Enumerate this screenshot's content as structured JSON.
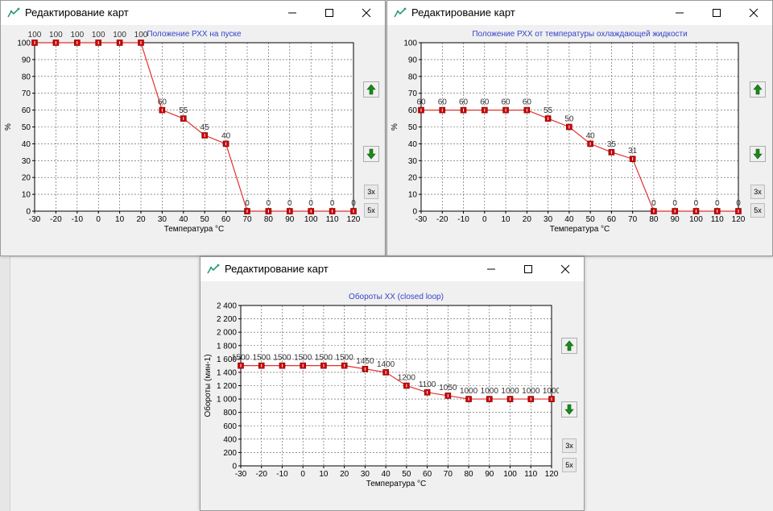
{
  "windows": [
    {
      "id": "w1",
      "title": "Редактирование карт",
      "buttons": {
        "zoom3": "3x",
        "zoom5": "5x"
      },
      "chart_data": {
        "type": "line",
        "title": "Положение РХХ на пуске",
        "xlabel": "Температура °C",
        "ylabel": "%",
        "x": [
          -30,
          -20,
          -10,
          0,
          10,
          20,
          30,
          40,
          50,
          60,
          70,
          80,
          90,
          100,
          110,
          120
        ],
        "values": [
          100,
          100,
          100,
          100,
          100,
          100,
          60,
          55,
          45,
          40,
          0,
          0,
          0,
          0,
          0,
          0
        ],
        "ylim": [
          0,
          100
        ],
        "yticks": [
          0,
          10,
          20,
          30,
          40,
          50,
          60,
          70,
          80,
          90,
          100
        ],
        "ytick_labels": [
          "0",
          "10",
          "20",
          "30",
          "40",
          "50",
          "60",
          "70",
          "80",
          "90",
          "100"
        ],
        "grid": true,
        "line_color": "#e03030",
        "marker_color": "#cc0000"
      }
    },
    {
      "id": "w2",
      "title": "Редактирование карт",
      "buttons": {
        "zoom3": "3x",
        "zoom5": "5x"
      },
      "chart_data": {
        "type": "line",
        "title": "Положение РХХ от температуры охлаждающей жидкости",
        "xlabel": "Температура °C",
        "ylabel": "%",
        "x": [
          -30,
          -20,
          -10,
          0,
          10,
          20,
          30,
          40,
          50,
          60,
          70,
          80,
          90,
          100,
          110,
          120
        ],
        "values": [
          60,
          60,
          60,
          60,
          60,
          60,
          55,
          50,
          40,
          35,
          31,
          0,
          0,
          0,
          0,
          0
        ],
        "ylim": [
          0,
          100
        ],
        "yticks": [
          0,
          10,
          20,
          30,
          40,
          50,
          60,
          70,
          80,
          90,
          100
        ],
        "ytick_labels": [
          "0",
          "10",
          "20",
          "30",
          "40",
          "50",
          "60",
          "70",
          "80",
          "90",
          "100"
        ],
        "grid": true,
        "line_color": "#e03030",
        "marker_color": "#cc0000"
      }
    },
    {
      "id": "w3",
      "title": "Редактирование карт",
      "buttons": {
        "zoom3": "3x",
        "zoom5": "5x"
      },
      "chart_data": {
        "type": "line",
        "title": "Обороты ХХ (closed loop)",
        "xlabel": "Температура °C",
        "ylabel": "Обороты (мин-1)",
        "x": [
          -30,
          -20,
          -10,
          0,
          10,
          20,
          30,
          40,
          50,
          60,
          70,
          80,
          90,
          100,
          110,
          120
        ],
        "values": [
          1500,
          1500,
          1500,
          1500,
          1500,
          1500,
          1450,
          1400,
          1200,
          1100,
          1050,
          1000,
          1000,
          1000,
          1000,
          1000
        ],
        "ylim": [
          0,
          2400
        ],
        "yticks": [
          0,
          200,
          400,
          600,
          800,
          1000,
          1200,
          1400,
          1600,
          1800,
          2000,
          2200,
          2400
        ],
        "ytick_labels": [
          "0",
          "200",
          "400",
          "600",
          "800",
          "1 000",
          "1 200",
          "1 400",
          "1 600",
          "1 800",
          "2 000",
          "2 200",
          "2 400"
        ],
        "grid": true,
        "line_color": "#e03030",
        "marker_color": "#cc0000"
      }
    }
  ]
}
